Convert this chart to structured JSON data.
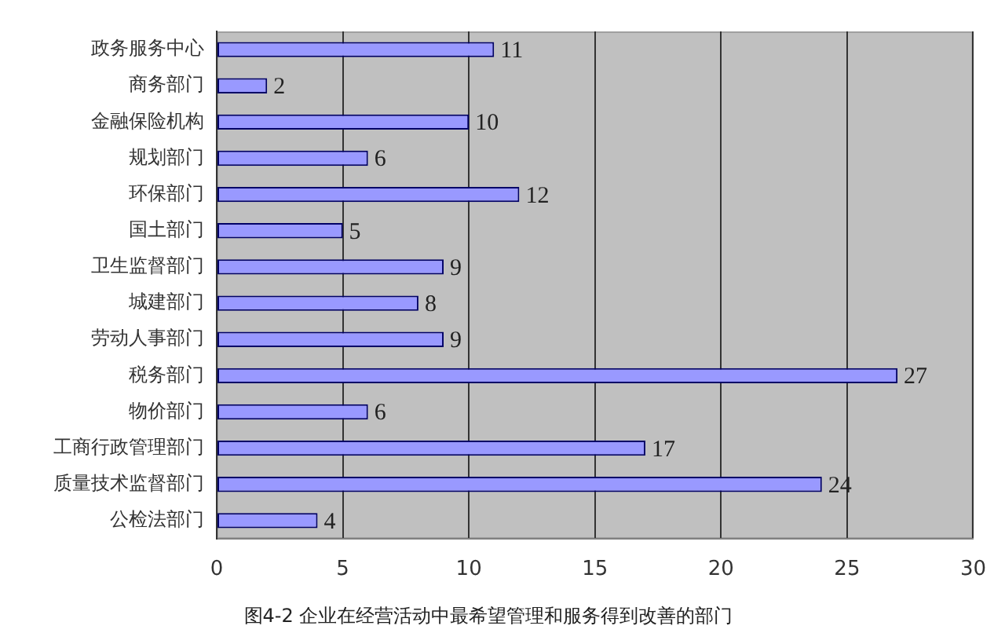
{
  "chart_data": {
    "type": "bar",
    "orientation": "horizontal",
    "categories": [
      "政务服务中心",
      "商务部门",
      "金融保险机构",
      "规划部门",
      "环保部门",
      "国土部门",
      "卫生监督部门",
      "城建部门",
      "劳动人事部门",
      "税务部门",
      "物价部门",
      "工商行政管理部门",
      "质量技术监督部门",
      "公检法部门"
    ],
    "values": [
      11,
      2,
      10,
      6,
      12,
      5,
      9,
      8,
      9,
      27,
      6,
      17,
      24,
      4
    ],
    "color": "#9999ff",
    "xlim": [
      0,
      30
    ],
    "xticks": [
      0,
      5,
      10,
      15,
      20,
      25,
      30
    ],
    "grid": "x",
    "data_labels": true,
    "annotations": [
      "图4-2 企业在经营活动中最希望管理和服务得到改善的部门"
    ]
  }
}
